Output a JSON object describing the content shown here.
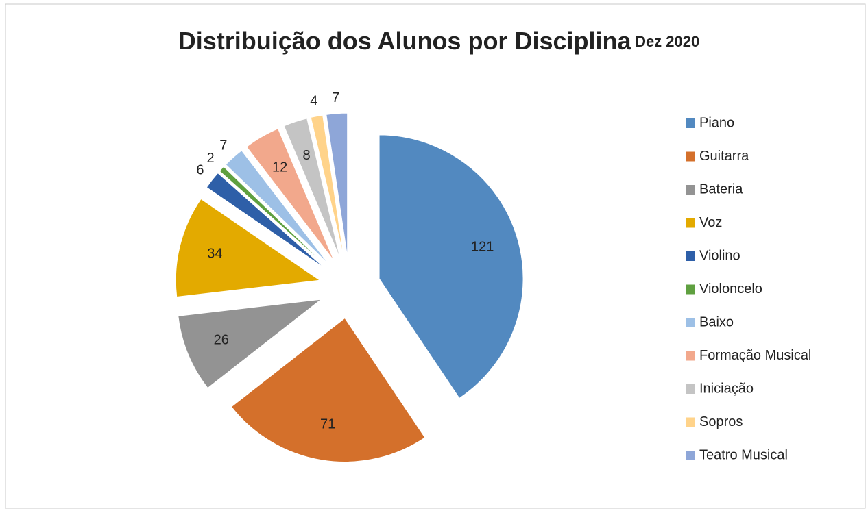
{
  "chart_data": {
    "type": "pie",
    "title": "Distribuição dos Alunos por Disciplina",
    "subtitle": "Dez 2020",
    "categories": [
      "Piano",
      "Guitarra",
      "Bateria",
      "Voz",
      "Violino",
      "Violoncelo",
      "Baixo",
      "Formação Musical",
      "Iniciação",
      "Sopros",
      "Teatro Musical"
    ],
    "values": [
      121,
      71,
      26,
      34,
      6,
      2,
      7,
      12,
      8,
      4,
      7
    ],
    "colors": [
      "#5289c0",
      "#d4702b",
      "#939393",
      "#e3aa00",
      "#2e5fa8",
      "#5fa040",
      "#9dc0e6",
      "#f2a88c",
      "#c4c4c4",
      "#ffd38a",
      "#8ea6d8"
    ],
    "legend": "right"
  }
}
